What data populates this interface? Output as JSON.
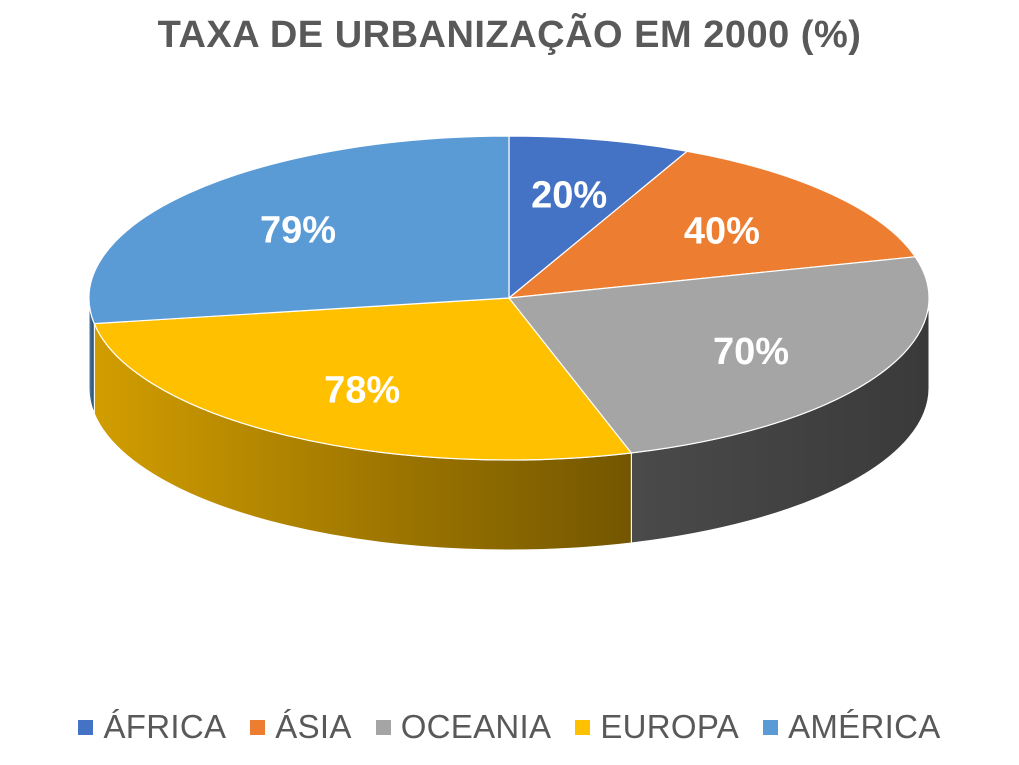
{
  "chart_data": {
    "type": "pie",
    "title": "TAXA DE URBANIZAÇÃO EM 2000 (%)",
    "categories": [
      "ÁFRICA",
      "ÁSIA",
      "OCEANIA",
      "EUROPA",
      "AMÉRICA"
    ],
    "values": [
      20,
      40,
      70,
      78,
      79
    ],
    "data_labels": [
      "20%",
      "40%",
      "70%",
      "78%",
      "79%"
    ],
    "colors": [
      "#4472C4",
      "#ED7D31",
      "#A5A5A5",
      "#FFC000",
      "#5B9BD5"
    ],
    "legend_position": "bottom",
    "style": "3d"
  }
}
